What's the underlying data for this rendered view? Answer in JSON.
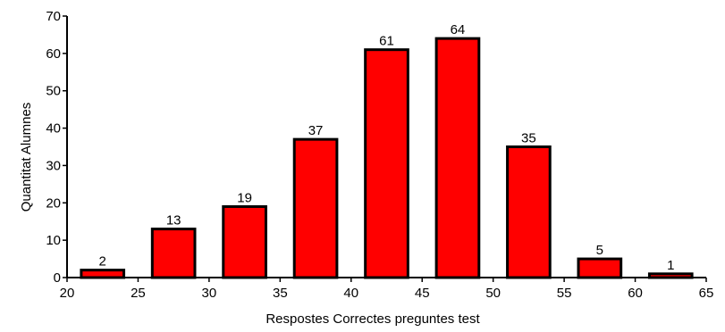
{
  "chart_data": {
    "type": "bar",
    "xlabel": "Respostes Correctes preguntes test",
    "ylabel": "Quantitat Alumnes",
    "xlim": [
      20,
      65
    ],
    "ylim": [
      0,
      70
    ],
    "xticks": [
      20,
      25,
      30,
      35,
      40,
      45,
      50,
      55,
      60,
      65
    ],
    "yticks": [
      0,
      10,
      20,
      30,
      40,
      50,
      60,
      70
    ],
    "bins": [
      {
        "from": 21,
        "to": 24,
        "value": 2
      },
      {
        "from": 26,
        "to": 29,
        "value": 13
      },
      {
        "from": 31,
        "to": 34,
        "value": 19
      },
      {
        "from": 36,
        "to": 39,
        "value": 37
      },
      {
        "from": 41,
        "to": 44,
        "value": 61
      },
      {
        "from": 46,
        "to": 49,
        "value": 64
      },
      {
        "from": 51,
        "to": 54,
        "value": 35
      },
      {
        "from": 56,
        "to": 59,
        "value": 5
      },
      {
        "from": 61,
        "to": 64,
        "value": 1
      }
    ],
    "values": [
      2,
      13,
      19,
      37,
      61,
      64,
      35,
      5,
      1
    ],
    "bar_color": "#ff0000",
    "bar_stroke": "#000000",
    "grid": false,
    "legend": false
  }
}
